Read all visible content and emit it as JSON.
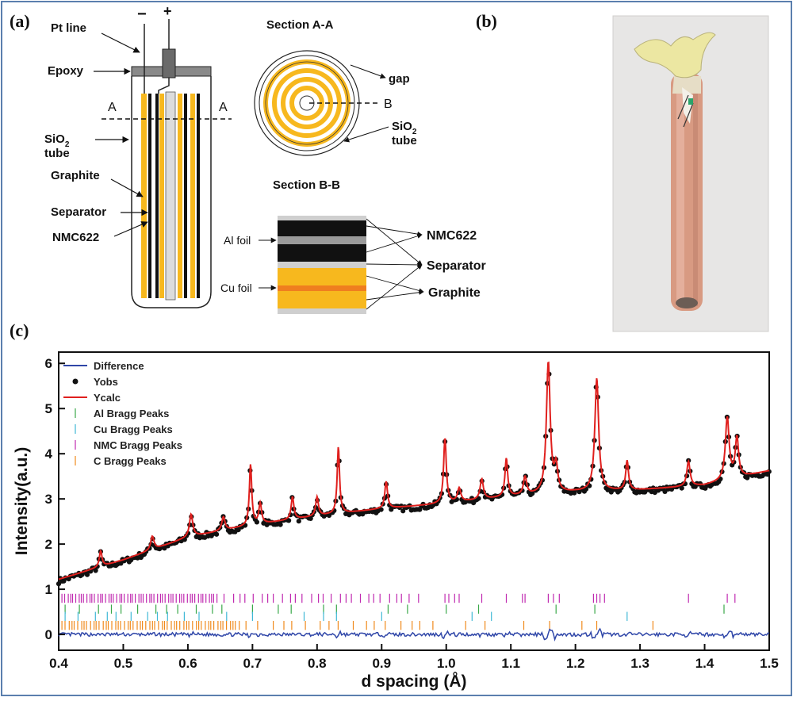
{
  "panel_labels": {
    "a": "(a)",
    "b": "(b)",
    "c": "(c)"
  },
  "schematic": {
    "minus": "−",
    "plus": "+",
    "pt_line": "Pt line",
    "epoxy": "Epoxy",
    "section_mark": "A",
    "sio2_tube_1": "SiO",
    "sio2_tube_sub": "2",
    "sio2_tube_2": "tube",
    "graphite": "Graphite",
    "separator": "Separator",
    "nmc622": "NMC622"
  },
  "section_aa": {
    "title": "Section A-A",
    "gap": "gap",
    "b_mark": "B",
    "sio2_1": "SiO",
    "sio2_sub": "2",
    "sio2_2": "tube"
  },
  "section_bb": {
    "title": "Section B-B",
    "al_foil": "Al foil",
    "cu_foil": "Cu foil",
    "nmc622": "NMC622",
    "separator": "Separator",
    "graphite": "Graphite"
  },
  "colors": {
    "graphite_orange": "#f7b81e",
    "nmc_black": "#111111",
    "separator_gray": "#cfcfcf",
    "cu_orange": "#ef7e1f",
    "ycalc_red": "#e0201e",
    "diff_blue": "#2f46a8",
    "al_green": "#3aa84a",
    "cu_cyan": "#3fb8d6",
    "nmc_magenta": "#c02ab0",
    "c_orange": "#f08a1c",
    "frame_blue": "#5b7fae"
  },
  "chart_data": {
    "type": "line",
    "xlabel": "d spacing (Å)",
    "ylabel": "Intensity(a.u.)",
    "xlim": [
      0.4,
      1.5
    ],
    "ylim": [
      -0.35,
      6.25
    ],
    "xticks": [
      "0.4",
      "0.5",
      "0.6",
      "0.7",
      "0.8",
      "0.9",
      "1.0",
      "1.1",
      "1.2",
      "1.3",
      "1.4",
      "1.5"
    ],
    "yticks": [
      "0",
      "1",
      "2",
      "3",
      "4",
      "5",
      "6"
    ],
    "legend_position": "top-left",
    "legend": [
      {
        "name": "Difference",
        "color": "#2f46a8",
        "marker": "line"
      },
      {
        "name": "Yobs",
        "color": "#111111",
        "marker": "dot"
      },
      {
        "name": "Ycalc",
        "color": "#e0201e",
        "marker": "line"
      },
      {
        "name": "Al  Bragg Peaks",
        "color": "#3aa84a",
        "marker": "tick"
      },
      {
        "name": "Cu Bragg Peaks",
        "color": "#3fb8d6",
        "marker": "tick"
      },
      {
        "name": "NMC Bragg Peaks",
        "color": "#c02ab0",
        "marker": "tick"
      },
      {
        "name": "C Bragg Peaks",
        "color": "#f08a1c",
        "marker": "tick"
      }
    ],
    "background": [
      [
        0.4,
        1.22
      ],
      [
        0.5,
        1.65
      ],
      [
        0.6,
        2.15
      ],
      [
        0.7,
        2.42
      ],
      [
        0.8,
        2.62
      ],
      [
        0.9,
        2.78
      ],
      [
        1.0,
        2.9
      ],
      [
        1.1,
        3.05
      ],
      [
        1.2,
        3.15
      ],
      [
        1.3,
        3.2
      ],
      [
        1.4,
        3.3
      ],
      [
        1.5,
        3.62
      ]
    ],
    "peaks": [
      {
        "d": 0.465,
        "h": 0.35,
        "w": 0.0025
      },
      {
        "d": 0.545,
        "h": 0.3,
        "w": 0.003
      },
      {
        "d": 0.605,
        "h": 0.5,
        "w": 0.003
      },
      {
        "d": 0.655,
        "h": 0.3,
        "w": 0.003
      },
      {
        "d": 0.697,
        "h": 1.35,
        "w": 0.0022
      },
      {
        "d": 0.712,
        "h": 0.45,
        "w": 0.0025
      },
      {
        "d": 0.762,
        "h": 0.5,
        "w": 0.0025
      },
      {
        "d": 0.8,
        "h": 0.42,
        "w": 0.0025
      },
      {
        "d": 0.833,
        "h": 1.48,
        "w": 0.0022
      },
      {
        "d": 0.907,
        "h": 0.6,
        "w": 0.0025
      },
      {
        "d": 0.998,
        "h": 1.45,
        "w": 0.0025
      },
      {
        "d": 1.02,
        "h": 0.3,
        "w": 0.003
      },
      {
        "d": 1.055,
        "h": 0.45,
        "w": 0.003
      },
      {
        "d": 1.093,
        "h": 0.85,
        "w": 0.0025
      },
      {
        "d": 1.122,
        "h": 0.4,
        "w": 0.003
      },
      {
        "d": 1.158,
        "h": 2.9,
        "w": 0.0035
      },
      {
        "d": 1.17,
        "h": 0.55,
        "w": 0.003
      },
      {
        "d": 1.233,
        "h": 2.5,
        "w": 0.0035
      },
      {
        "d": 1.28,
        "h": 0.65,
        "w": 0.0025
      },
      {
        "d": 1.375,
        "h": 0.55,
        "w": 0.003
      },
      {
        "d": 1.435,
        "h": 1.38,
        "w": 0.0035
      },
      {
        "d": 1.45,
        "h": 0.88,
        "w": 0.003
      }
    ],
    "bragg": {
      "NMC": {
        "y": 0.8,
        "color": "#c02ab0"
      },
      "Al": {
        "y": 0.56,
        "color": "#3aa84a"
      },
      "Cu": {
        "y": 0.4,
        "color": "#3fb8d6"
      },
      "C": {
        "y": 0.2,
        "color": "#f08a1c"
      }
    },
    "difference_level": 0.0
  }
}
